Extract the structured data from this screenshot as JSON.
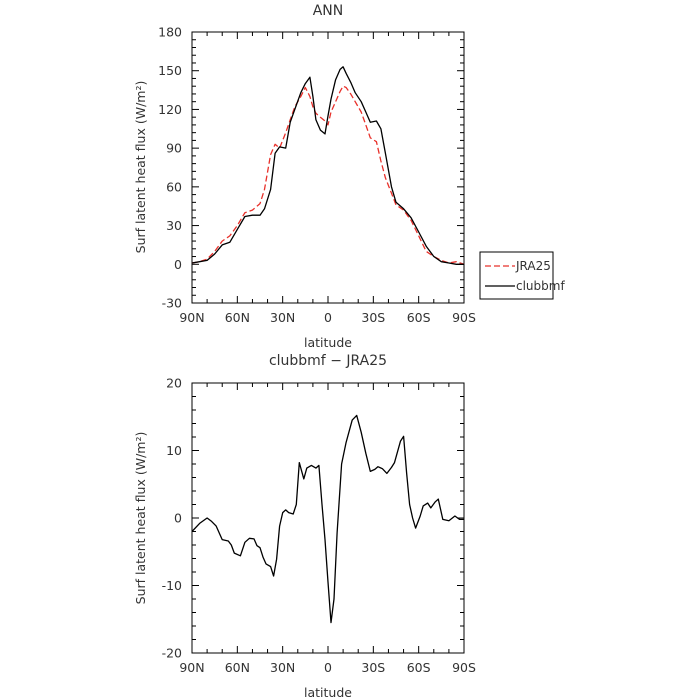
{
  "chart_data": [
    {
      "type": "line",
      "title": "ANN",
      "xlabel": "latitude",
      "ylabel": "Surf latent heat flux (W/m²)",
      "ylim": [
        -30,
        180
      ],
      "yticks": [
        -30,
        0,
        30,
        60,
        90,
        120,
        150,
        180
      ],
      "xlim": [
        90,
        -90
      ],
      "xticks": [
        90,
        60,
        30,
        0,
        -30,
        -60,
        -90
      ],
      "xtick_labels": [
        "90N",
        "60N",
        "30N",
        "0",
        "30S",
        "60S",
        "90S"
      ],
      "legend": "right",
      "x": [
        90,
        85,
        80,
        75,
        70,
        65,
        60,
        55,
        50,
        45,
        42,
        38,
        35,
        32,
        28,
        25,
        22,
        18,
        15,
        12,
        10,
        8,
        5,
        2,
        0,
        -2,
        -5,
        -8,
        -10,
        -12,
        -15,
        -18,
        -22,
        -25,
        -28,
        -32,
        -35,
        -38,
        -42,
        -45,
        -50,
        -55,
        -60,
        -65,
        -70,
        -75,
        -80,
        -85,
        -90
      ],
      "series": [
        {
          "name": "JRA25",
          "color": "#e8302a",
          "dash": "dashed",
          "values": [
            1,
            2,
            4,
            10,
            18,
            22,
            30,
            40,
            42,
            47,
            58,
            85,
            93,
            90,
            102,
            112,
            122,
            130,
            137,
            130,
            122,
            117,
            114,
            111,
            108,
            118,
            126,
            134,
            138,
            137,
            132,
            126,
            118,
            108,
            98,
            95,
            80,
            67,
            55,
            46,
            42,
            34,
            22,
            10,
            6,
            3,
            1,
            2,
            0
          ]
        },
        {
          "name": "clubbmf",
          "color": "#000000",
          "dash": "solid",
          "values": [
            1,
            2,
            3,
            8,
            15,
            17,
            27,
            37,
            38,
            38,
            43,
            58,
            86,
            91,
            90,
            110,
            120,
            133,
            140,
            145,
            130,
            112,
            104,
            101,
            115,
            128,
            143,
            151,
            153,
            148,
            141,
            133,
            126,
            118,
            110,
            111,
            105,
            86,
            60,
            48,
            43,
            36,
            25,
            14,
            6,
            2,
            1,
            0,
            0
          ]
        }
      ]
    },
    {
      "type": "line",
      "title": "clubbmf − JRA25",
      "xlabel": "latitude",
      "ylabel": "Surf latent heat flux (W/m²)",
      "ylim": [
        -20,
        20
      ],
      "yticks": [
        -20,
        -10,
        0,
        10,
        20
      ],
      "xlim": [
        90,
        -90
      ],
      "xticks": [
        90,
        60,
        30,
        0,
        -30,
        -60,
        -90
      ],
      "xtick_labels": [
        "90N",
        "60N",
        "30N",
        "0",
        "30S",
        "60S",
        "90S"
      ],
      "x": [
        90,
        85,
        80,
        77,
        74,
        70,
        66,
        64,
        62,
        58,
        55,
        52,
        49,
        47,
        45,
        43,
        41,
        38,
        36,
        34,
        32,
        30,
        28,
        26,
        23,
        21,
        19,
        16,
        14,
        11,
        8,
        6,
        4,
        2,
        0,
        -2,
        -4,
        -6,
        -9,
        -12,
        -16,
        -19,
        -22,
        -25,
        -28,
        -31,
        -33,
        -36,
        -39,
        -42,
        -44,
        -48,
        -50,
        -52,
        -54,
        -56,
        -58,
        -61,
        -63,
        -66,
        -68,
        -71,
        -73,
        -76,
        -80,
        -84,
        -87,
        -90
      ],
      "series": [
        {
          "name": "",
          "color": "#000000",
          "dash": "solid",
          "values": [
            -2,
            -0.8,
            0,
            -0.5,
            -1.2,
            -3.2,
            -3.4,
            -4,
            -5.2,
            -5.6,
            -3.6,
            -3,
            -3.1,
            -4.1,
            -4.4,
            -5.8,
            -6.8,
            -7.2,
            -8.6,
            -6.1,
            -1.2,
            0.8,
            1.2,
            0.8,
            0.6,
            2,
            8.2,
            5.8,
            7.4,
            7.8,
            7.4,
            7.8,
            2,
            -3.2,
            -9.5,
            -15.5,
            -12,
            -2.2,
            8,
            11.2,
            14.5,
            15.2,
            12.7,
            9.6,
            6.9,
            7.2,
            7.6,
            7.3,
            6.6,
            7.5,
            8.2,
            11.4,
            12.1,
            6.7,
            2,
            0,
            -1.5,
            0.3,
            1.8,
            2.2,
            1.5,
            2.4,
            2.8,
            -0.2,
            -0.4,
            0.3,
            -0.2,
            -0.2
          ]
        }
      ]
    }
  ]
}
